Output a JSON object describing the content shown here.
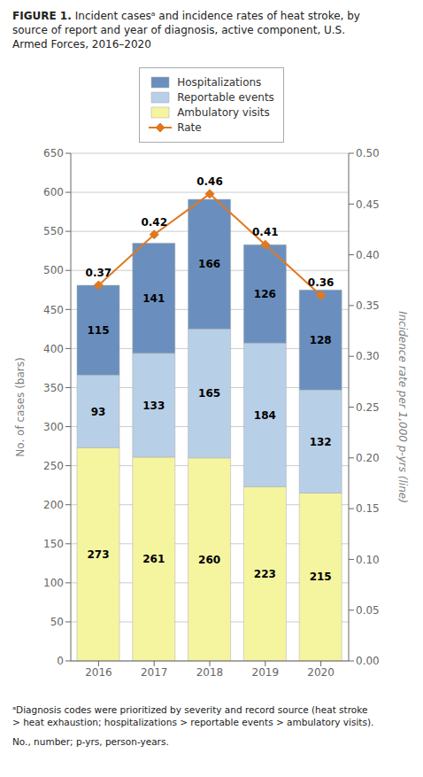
{
  "chart_data": {
    "type": "bar",
    "title": "FIGURE 1.",
    "subtitle": "Incident casesᵃ and incidence rates of heat stroke, by\nsource of report and year of diagnosis, active component, U.S.\nArmed Forces, 2016–2020",
    "annotations": [
      "ᵃDiagnosis codes were prioritized by severity and record source (heat stroke\n> heat exhaustion; hospitalizations > reportable events > ambulatory visits).",
      "No., number; p-yrs, person-years."
    ],
    "categories": [
      "2016",
      "2017",
      "2018",
      "2019",
      "2020"
    ],
    "stacked": true,
    "series": [
      {
        "name": "Ambulatory visits",
        "color": "#f5f5a0",
        "values": [
          273,
          261,
          260,
          223,
          215
        ]
      },
      {
        "name": "Reportable events",
        "color": "#b8cfe8",
        "values": [
          93,
          133,
          165,
          184,
          132
        ]
      },
      {
        "name": "Hospitalizations",
        "color": "#6a8fbe",
        "values": [
          115,
          141,
          166,
          126,
          128
        ]
      },
      {
        "name": "Rate",
        "type": "line",
        "axis": "y2",
        "color": "#e07820",
        "marker": "diamond",
        "values": [
          0.37,
          0.42,
          0.46,
          0.41,
          0.36
        ]
      }
    ],
    "ylabel": "No. of cases (bars)",
    "y2label": "Incidence rate per 1,000 p-yrs (line)",
    "ylim": [
      0,
      650
    ],
    "yticks": [
      0,
      50,
      100,
      150,
      200,
      250,
      300,
      350,
      400,
      450,
      500,
      550,
      600,
      650
    ],
    "y2lim": [
      0,
      0.5
    ],
    "y2ticks": [
      {
        "value": 0,
        "label": "0.00"
      },
      0.05,
      {
        "value": 0.1,
        "label": "0.10"
      },
      0.15,
      {
        "value": 0.2,
        "label": "0.20"
      },
      0.25,
      {
        "value": 0.3,
        "label": "0.30"
      },
      0.35,
      {
        "value": 0.4,
        "label": "0.40"
      },
      0.45,
      {
        "value": 0.5,
        "label": "0.50"
      }
    ],
    "grid": true,
    "legend": "top",
    "data_labels": true
  }
}
